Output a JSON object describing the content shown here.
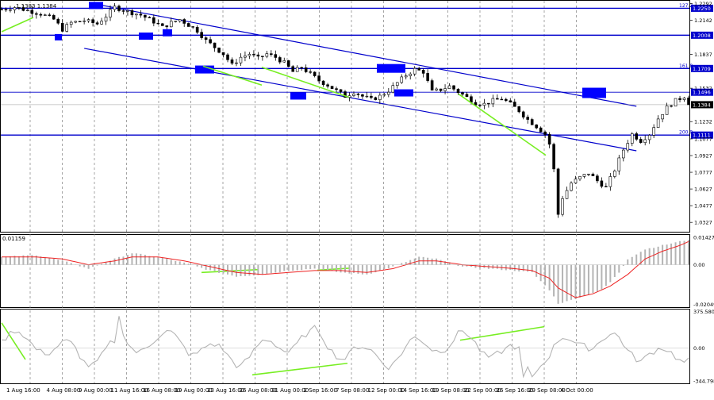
{
  "header": {
    "symbol": "",
    "ohlc": "1.1383 1.1384"
  },
  "colors": {
    "bg": "#ffffff",
    "grid": "#7f7f7f",
    "candle": "#000000",
    "channel": "#0000cc",
    "level": "#0000cc",
    "level_label_bg": "#0000cc",
    "level_label_text": "#ffffff",
    "marker": "#0000ff",
    "divergence": "#77ee22",
    "macd_hist": "#b4b4b4",
    "macd_signal": "#ee2222",
    "cci": "#b4b4b4"
  },
  "chart_data": [
    {
      "type": "candlestick",
      "name": "price",
      "ylim": [
        1.025,
        1.231
      ],
      "y_ticks": [
        "1.2292",
        "1.2142",
        "1.1837",
        "1.1532",
        "1.1232",
        "1.1077",
        "1.0927",
        "1.0777",
        "1.0627",
        "1.0477",
        "1.0327"
      ],
      "y_tick_values": [
        1.2292,
        1.2142,
        1.1837,
        1.1532,
        1.1232,
        1.1077,
        1.0927,
        1.0777,
        1.0627,
        1.0477,
        1.0327
      ],
      "x_ticks": [
        "1 Aug 16:00",
        "4 Aug 08:00",
        "9 Aug 00:00",
        "11 Aug 16:00",
        "16 Aug 08:00",
        "19 Aug 00:00",
        "23 Aug 16:00",
        "26 Aug 08:00",
        "31 Aug 00:00",
        "2 Sep 16:00",
        "7 Sep 08:00",
        "12 Sep 00:00",
        "14 Sep 16:00",
        "19 Sep 08:00",
        "22 Sep 00:00",
        "26 Sep 16:00",
        "29 Sep 08:00",
        "4 Oct 00:00"
      ],
      "levels": [
        {
          "label": "1.2250",
          "value": 1.225,
          "fib": "127.2"
        },
        {
          "label": "1.2008",
          "value": 1.2008,
          "fib": ""
        },
        {
          "label": "1.1709",
          "value": 1.1709,
          "fib": "161.8"
        },
        {
          "label": "1.1496",
          "value": 1.1496,
          "fib": ""
        },
        {
          "label": "1.1384",
          "value": 1.1384,
          "fib": ""
        },
        {
          "label": "1.1111",
          "value": 1.1111,
          "fib": "200.0"
        }
      ],
      "price_path": [
        [
          0,
          1.224
        ],
        [
          3,
          1.226
        ],
        [
          6,
          1.223
        ],
        [
          9,
          1.22
        ],
        [
          12,
          1.215
        ],
        [
          14,
          1.206
        ],
        [
          16,
          1.212
        ],
        [
          19,
          1.214
        ],
        [
          22,
          1.211
        ],
        [
          24,
          1.218
        ],
        [
          26,
          1.226
        ],
        [
          29,
          1.222
        ],
        [
          32,
          1.219
        ],
        [
          35,
          1.213
        ],
        [
          37,
          1.208
        ],
        [
          39,
          1.212
        ],
        [
          41,
          1.215
        ],
        [
          43,
          1.21
        ],
        [
          45,
          1.205
        ],
        [
          47,
          1.196
        ],
        [
          49,
          1.19
        ],
        [
          51,
          1.184
        ],
        [
          53,
          1.174
        ],
        [
          55,
          1.181
        ],
        [
          57,
          1.184
        ],
        [
          59,
          1.18
        ],
        [
          61,
          1.184
        ],
        [
          63,
          1.181
        ],
        [
          65,
          1.176
        ],
        [
          67,
          1.168
        ],
        [
          69,
          1.172
        ],
        [
          71,
          1.166
        ],
        [
          73,
          1.16
        ],
        [
          75,
          1.156
        ],
        [
          77,
          1.151
        ],
        [
          79,
          1.146
        ],
        [
          81,
          1.15
        ],
        [
          83,
          1.146
        ],
        [
          85,
          1.143
        ],
        [
          87,
          1.146
        ],
        [
          89,
          1.151
        ],
        [
          91,
          1.158
        ],
        [
          93,
          1.165
        ],
        [
          95,
          1.17
        ],
        [
          97,
          1.168
        ],
        [
          99,
          1.15
        ],
        [
          101,
          1.152
        ],
        [
          103,
          1.155
        ],
        [
          105,
          1.15
        ],
        [
          107,
          1.145
        ],
        [
          109,
          1.14
        ],
        [
          111,
          1.139
        ],
        [
          113,
          1.142
        ],
        [
          115,
          1.144
        ],
        [
          117,
          1.139
        ],
        [
          119,
          1.133
        ],
        [
          121,
          1.125
        ],
        [
          123,
          1.119
        ],
        [
          125,
          1.112
        ],
        [
          126,
          1.103
        ],
        [
          127,
          1.08
        ],
        [
          128,
          1.04
        ],
        [
          129,
          1.055
        ],
        [
          131,
          1.068
        ],
        [
          133,
          1.073
        ],
        [
          135,
          1.077
        ],
        [
          137,
          1.07
        ],
        [
          139,
          1.064
        ],
        [
          141,
          1.08
        ],
        [
          143,
          1.098
        ],
        [
          145,
          1.112
        ],
        [
          147,
          1.106
        ],
        [
          149,
          1.112
        ],
        [
          151,
          1.126
        ],
        [
          153,
          1.136
        ],
        [
          155,
          1.142
        ],
        [
          157,
          1.146
        ],
        [
          158,
          1.14
        ]
      ],
      "candle_count": 159
    },
    {
      "type": "histogram",
      "name": "macd",
      "ylim": [
        -0.0215,
        0.015
      ],
      "y_ticks": [
        "0.01427",
        "0.00",
        "-0.02049"
      ],
      "y_tick_values": [
        0.01427,
        0.0,
        -0.02049
      ],
      "header": "0.01159",
      "hist_path": [
        [
          0,
          0.004
        ],
        [
          8,
          0.005
        ],
        [
          14,
          0.002
        ],
        [
          20,
          -0.002
        ],
        [
          26,
          0.003
        ],
        [
          30,
          0.006
        ],
        [
          36,
          0.004
        ],
        [
          42,
          0.001
        ],
        [
          48,
          -0.003
        ],
        [
          54,
          -0.006
        ],
        [
          60,
          -0.005
        ],
        [
          66,
          -0.003
        ],
        [
          72,
          -0.002
        ],
        [
          78,
          -0.004
        ],
        [
          84,
          -0.005
        ],
        [
          90,
          -0.001
        ],
        [
          96,
          0.004
        ],
        [
          100,
          0.003
        ],
        [
          106,
          -0.001
        ],
        [
          112,
          -0.002
        ],
        [
          118,
          -0.003
        ],
        [
          122,
          -0.004
        ],
        [
          126,
          -0.013
        ],
        [
          128,
          -0.02
        ],
        [
          130,
          -0.019
        ],
        [
          134,
          -0.016
        ],
        [
          138,
          -0.013
        ],
        [
          140,
          -0.009
        ],
        [
          142,
          -0.004
        ],
        [
          144,
          0.003
        ],
        [
          148,
          0.008
        ],
        [
          152,
          0.01
        ],
        [
          156,
          0.012
        ],
        [
          158,
          0.013
        ]
      ],
      "signal_path": [
        [
          0,
          0.004
        ],
        [
          8,
          0.004
        ],
        [
          14,
          0.003
        ],
        [
          20,
          0.0
        ],
        [
          26,
          0.002
        ],
        [
          30,
          0.004
        ],
        [
          36,
          0.004
        ],
        [
          42,
          0.002
        ],
        [
          48,
          -0.001
        ],
        [
          54,
          -0.004
        ],
        [
          60,
          -0.005
        ],
        [
          66,
          -0.004
        ],
        [
          72,
          -0.003
        ],
        [
          78,
          -0.003
        ],
        [
          84,
          -0.004
        ],
        [
          90,
          -0.002
        ],
        [
          96,
          0.002
        ],
        [
          100,
          0.002
        ],
        [
          106,
          0.0
        ],
        [
          112,
          -0.001
        ],
        [
          118,
          -0.002
        ],
        [
          122,
          -0.003
        ],
        [
          126,
          -0.007
        ],
        [
          128,
          -0.012
        ],
        [
          132,
          -0.017
        ],
        [
          136,
          -0.015
        ],
        [
          140,
          -0.011
        ],
        [
          144,
          -0.005
        ],
        [
          148,
          0.003
        ],
        [
          152,
          0.007
        ],
        [
          156,
          0.01
        ],
        [
          158,
          0.012
        ]
      ]
    },
    {
      "type": "line",
      "name": "cci",
      "ylim": [
        -360,
        390
      ],
      "y_ticks": [
        "375.5808",
        "0.00",
        "-344.798"
      ],
      "y_tick_values": [
        375.5808,
        0.0,
        -344.798
      ]
    }
  ]
}
